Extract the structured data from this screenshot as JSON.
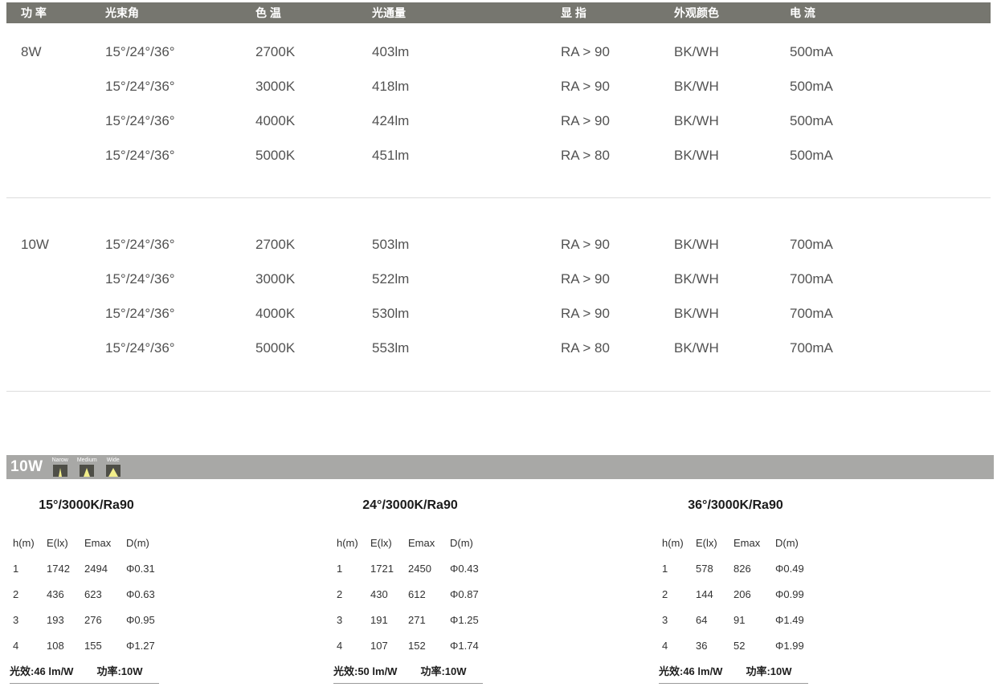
{
  "colors": {
    "spec_header_bar": "#76766F",
    "beam_bar": "#A8A8A6",
    "beam_box": "#4E4E47",
    "beam_yellow": "#F2EE8A",
    "divider": "#DCDCDC"
  },
  "spec_table": {
    "headers": [
      "功 率",
      "光束角",
      "色 温",
      "光通量",
      "显 指",
      "外观颜色",
      "电 流"
    ],
    "sections": [
      {
        "power": "8W",
        "rows": [
          [
            "15°/24°/36°",
            "2700K",
            "403lm",
            "RA > 90",
            "BK/WH",
            "500mA"
          ],
          [
            "15°/24°/36°",
            "3000K",
            "418lm",
            "RA > 90",
            "BK/WH",
            "500mA"
          ],
          [
            "15°/24°/36°",
            "4000K",
            "424lm",
            "RA > 90",
            "BK/WH",
            "500mA"
          ],
          [
            "15°/24°/36°",
            "5000K",
            "451lm",
            "RA > 80",
            "BK/WH",
            "500mA"
          ]
        ]
      },
      {
        "power": "10W",
        "rows": [
          [
            "15°/24°/36°",
            "2700K",
            "503lm",
            "RA > 90",
            "BK/WH",
            "700mA"
          ],
          [
            "15°/24°/36°",
            "3000K",
            "522lm",
            "RA > 90",
            "BK/WH",
            "700mA"
          ],
          [
            "15°/24°/36°",
            "4000K",
            "530lm",
            "RA > 90",
            "BK/WH",
            "700mA"
          ],
          [
            "15°/24°/36°",
            "5000K",
            "553lm",
            "RA > 80",
            "BK/WH",
            "700mA"
          ]
        ]
      }
    ]
  },
  "beam_bar": {
    "label": "10W",
    "beams": [
      {
        "label": "Narow"
      },
      {
        "label": "Medium"
      },
      {
        "label": "Wide"
      }
    ]
  },
  "photometric_tables": [
    {
      "title": "15°/3000K/Ra90",
      "headers": [
        "h(m)",
        "E(lx)",
        "Emax",
        "D(m)"
      ],
      "rows": [
        [
          "1",
          "1742",
          "2494",
          "Φ0.31"
        ],
        [
          "2",
          "436",
          "623",
          "Φ0.63"
        ],
        [
          "3",
          "193",
          "276",
          "Φ0.95"
        ],
        [
          "4",
          "108",
          "155",
          "Φ1.27"
        ]
      ],
      "efficacy": "光效:46 lm/W",
      "power": "功率:10W"
    },
    {
      "title": "24°/3000K/Ra90",
      "headers": [
        "h(m)",
        "E(lx)",
        "Emax",
        "D(m)"
      ],
      "rows": [
        [
          "1",
          "1721",
          "2450",
          "Φ0.43"
        ],
        [
          "2",
          "430",
          "612",
          "Φ0.87"
        ],
        [
          "3",
          "191",
          "271",
          "Φ1.25"
        ],
        [
          "4",
          "107",
          "152",
          "Φ1.74"
        ]
      ],
      "efficacy": "光效:50 lm/W",
      "power": "功率:10W"
    },
    {
      "title": "36°/3000K/Ra90",
      "headers": [
        "h(m)",
        "E(lx)",
        "Emax",
        "D(m)"
      ],
      "rows": [
        [
          "1",
          "578",
          "826",
          "Φ0.49"
        ],
        [
          "2",
          "144",
          "206",
          "Φ0.99"
        ],
        [
          "3",
          "64",
          "91",
          "Φ1.49"
        ],
        [
          "4",
          "36",
          "52",
          "Φ1.99"
        ]
      ],
      "efficacy": "光效:46 lm/W",
      "power": "功率:10W"
    }
  ]
}
